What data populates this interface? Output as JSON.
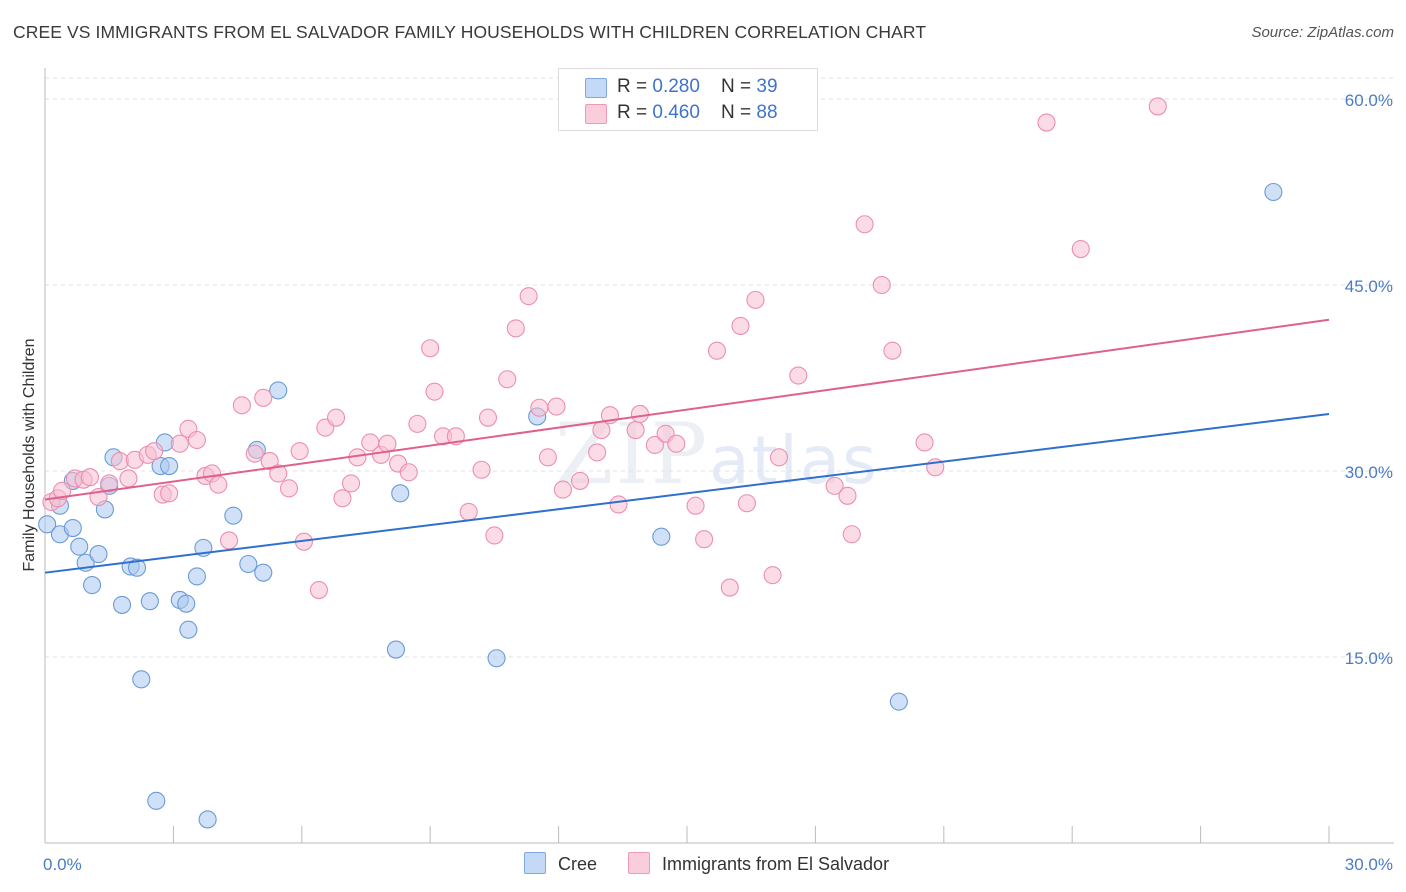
{
  "title": "CREE VS IMMIGRANTS FROM EL SALVADOR FAMILY HOUSEHOLDS WITH CHILDREN CORRELATION CHART",
  "source": "Source: ZipAtlas.com",
  "watermark": {
    "zip": "ZIP",
    "atlas": "atlas"
  },
  "legend": {
    "rows": [
      {
        "r_label": "R = ",
        "r_value": "0.280",
        "n_label": "N = ",
        "n_value": "39"
      },
      {
        "r_label": "R = ",
        "r_value": "0.460",
        "n_label": "N = ",
        "n_value": "88"
      }
    ]
  },
  "chart_data": {
    "type": "scatter",
    "title": "CREE VS IMMIGRANTS FROM EL SALVADOR FAMILY HOUSEHOLDS WITH CHILDREN CORRELATION CHART",
    "xlabel": "",
    "ylabel": "Family Households with Children",
    "xlim": [
      0,
      30
    ],
    "ylim": [
      0,
      62.5
    ],
    "x_tick_labels": [
      "0.0%",
      "30.0%"
    ],
    "y_ticks": [
      15,
      30,
      45,
      60
    ],
    "y_tick_labels": [
      "15.0%",
      "30.0%",
      "45.0%",
      "60.0%"
    ],
    "grid": true,
    "legend_position": "top-center",
    "series": [
      {
        "name": "Cree",
        "color": "#a9c8f0",
        "edge": "#6b9bd8",
        "trend_color": "#2e6fd0",
        "R": 0.28,
        "N": 39,
        "trend": [
          [
            0,
            21.8
          ],
          [
            30,
            34.6
          ]
        ],
        "points": [
          [
            0.05,
            25.7
          ],
          [
            0.35,
            27.2
          ],
          [
            0.35,
            24.9
          ],
          [
            0.65,
            29.2
          ],
          [
            0.65,
            25.4
          ],
          [
            0.8,
            23.9
          ],
          [
            0.95,
            22.6
          ],
          [
            1.1,
            20.8
          ],
          [
            1.25,
            23.3
          ],
          [
            1.4,
            26.9
          ],
          [
            1.5,
            28.8
          ],
          [
            1.6,
            31.1
          ],
          [
            1.8,
            19.2
          ],
          [
            2.0,
            22.3
          ],
          [
            2.15,
            22.2
          ],
          [
            2.25,
            13.2
          ],
          [
            2.45,
            19.5
          ],
          [
            2.6,
            3.4
          ],
          [
            2.7,
            30.4
          ],
          [
            2.8,
            32.3
          ],
          [
            2.9,
            30.4
          ],
          [
            3.15,
            19.6
          ],
          [
            3.3,
            19.3
          ],
          [
            3.35,
            17.2
          ],
          [
            3.55,
            21.5
          ],
          [
            3.7,
            23.8
          ],
          [
            3.8,
            1.9
          ],
          [
            4.4,
            26.4
          ],
          [
            4.75,
            22.5
          ],
          [
            4.95,
            31.7
          ],
          [
            5.1,
            21.8
          ],
          [
            5.45,
            36.5
          ],
          [
            8.2,
            15.6
          ],
          [
            8.3,
            28.2
          ],
          [
            10.55,
            14.9
          ],
          [
            11.5,
            34.4
          ],
          [
            14.4,
            24.7
          ],
          [
            19.95,
            11.4
          ],
          [
            28.7,
            52.5
          ]
        ]
      },
      {
        "name": "Immigrants from El Salvador",
        "color": "#f7bfd1",
        "edge": "#ec8fae",
        "trend_color": "#e0608c",
        "R": 0.46,
        "N": 88,
        "trend": [
          [
            0,
            27.7
          ],
          [
            30,
            42.2
          ]
        ],
        "points": [
          [
            0.15,
            27.5
          ],
          [
            0.3,
            27.8
          ],
          [
            0.4,
            28.4
          ],
          [
            0.7,
            29.4
          ],
          [
            0.9,
            29.3
          ],
          [
            1.05,
            29.5
          ],
          [
            1.25,
            27.9
          ],
          [
            1.5,
            29.0
          ],
          [
            1.75,
            30.8
          ],
          [
            1.95,
            29.4
          ],
          [
            2.1,
            30.9
          ],
          [
            2.4,
            31.3
          ],
          [
            2.55,
            31.6
          ],
          [
            2.75,
            28.1
          ],
          [
            2.9,
            28.2
          ],
          [
            3.15,
            32.2
          ],
          [
            3.35,
            33.4
          ],
          [
            3.55,
            32.5
          ],
          [
            3.75,
            29.6
          ],
          [
            3.9,
            29.8
          ],
          [
            4.05,
            28.9
          ],
          [
            4.3,
            24.4
          ],
          [
            4.6,
            35.3
          ],
          [
            4.9,
            31.4
          ],
          [
            5.1,
            35.9
          ],
          [
            5.25,
            30.8
          ],
          [
            5.45,
            29.8
          ],
          [
            5.7,
            28.6
          ],
          [
            5.95,
            31.6
          ],
          [
            6.05,
            24.3
          ],
          [
            6.4,
            20.4
          ],
          [
            6.55,
            33.5
          ],
          [
            6.8,
            34.3
          ],
          [
            6.95,
            27.8
          ],
          [
            7.15,
            29.0
          ],
          [
            7.3,
            31.1
          ],
          [
            7.6,
            32.3
          ],
          [
            7.85,
            31.3
          ],
          [
            8.0,
            32.2
          ],
          [
            8.25,
            30.6
          ],
          [
            8.5,
            29.9
          ],
          [
            8.7,
            33.8
          ],
          [
            9.0,
            39.9
          ],
          [
            9.1,
            36.4
          ],
          [
            9.3,
            32.8
          ],
          [
            9.6,
            32.8
          ],
          [
            9.9,
            26.7
          ],
          [
            10.2,
            30.1
          ],
          [
            10.35,
            34.3
          ],
          [
            10.5,
            24.8
          ],
          [
            10.8,
            37.4
          ],
          [
            11.0,
            41.5
          ],
          [
            11.3,
            44.1
          ],
          [
            11.55,
            35.1
          ],
          [
            11.75,
            31.1
          ],
          [
            11.95,
            35.2
          ],
          [
            12.1,
            28.5
          ],
          [
            12.5,
            29.2
          ],
          [
            12.9,
            31.5
          ],
          [
            13.0,
            33.3
          ],
          [
            13.2,
            34.5
          ],
          [
            13.4,
            27.3
          ],
          [
            13.8,
            33.3
          ],
          [
            13.9,
            34.6
          ],
          [
            14.25,
            32.1
          ],
          [
            14.5,
            33.0
          ],
          [
            14.75,
            32.2
          ],
          [
            15.2,
            27.2
          ],
          [
            15.4,
            24.5
          ],
          [
            15.7,
            39.7
          ],
          [
            16.0,
            20.6
          ],
          [
            16.25,
            41.7
          ],
          [
            16.4,
            27.4
          ],
          [
            16.6,
            43.8
          ],
          [
            17.0,
            21.6
          ],
          [
            17.15,
            31.1
          ],
          [
            17.6,
            37.7
          ],
          [
            18.45,
            28.8
          ],
          [
            18.75,
            28.0
          ],
          [
            18.85,
            24.9
          ],
          [
            19.15,
            49.9
          ],
          [
            19.55,
            45.0
          ],
          [
            19.8,
            39.7
          ],
          [
            20.55,
            32.3
          ],
          [
            20.8,
            30.3
          ],
          [
            23.4,
            58.1
          ],
          [
            24.2,
            47.9
          ],
          [
            26.0,
            59.4
          ]
        ]
      }
    ]
  },
  "bottom_legend": {
    "cree": "Cree",
    "salvador": "Immigrants from El Salvador"
  }
}
